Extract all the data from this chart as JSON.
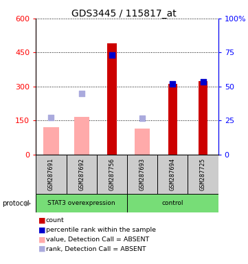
{
  "title": "GDS3445 / 115817_at",
  "samples": [
    "GSM287691",
    "GSM287692",
    "GSM287756",
    "GSM287693",
    "GSM287694",
    "GSM287725"
  ],
  "left_ylim": [
    0,
    600
  ],
  "right_ylim": [
    0,
    100
  ],
  "left_yticks": [
    0,
    150,
    300,
    450,
    600
  ],
  "right_yticks": [
    0,
    25,
    50,
    75,
    100
  ],
  "right_yticklabels": [
    "0",
    "25",
    "50",
    "75",
    "100%"
  ],
  "count_values": [
    null,
    null,
    490,
    null,
    310,
    325
  ],
  "percentile_values": [
    null,
    null,
    73.0,
    null,
    52.0,
    53.5
  ],
  "absent_value_values": [
    120,
    165,
    null,
    115,
    null,
    null
  ],
  "absent_rank_values": [
    27.0,
    45.0,
    null,
    26.5,
    null,
    null
  ],
  "count_color": "#cc0000",
  "percentile_color": "#0000cc",
  "absent_value_color": "#ffaaaa",
  "absent_rank_color": "#aaaadd",
  "bar_width": 0.5,
  "legend_items": [
    {
      "label": "count",
      "color": "#cc0000"
    },
    {
      "label": "percentile rank within the sample",
      "color": "#0000cc"
    },
    {
      "label": "value, Detection Call = ABSENT",
      "color": "#ffaaaa"
    },
    {
      "label": "rank, Detection Call = ABSENT",
      "color": "#aaaadd"
    }
  ],
  "protocol_label": "protocol",
  "group_label_1": "STAT3 overexpression",
  "group_label_2": "control",
  "group1_indices": [
    0,
    1,
    2
  ],
  "group2_indices": [
    3,
    4,
    5
  ],
  "green_color": "#77dd77",
  "gray_color": "#cccccc"
}
